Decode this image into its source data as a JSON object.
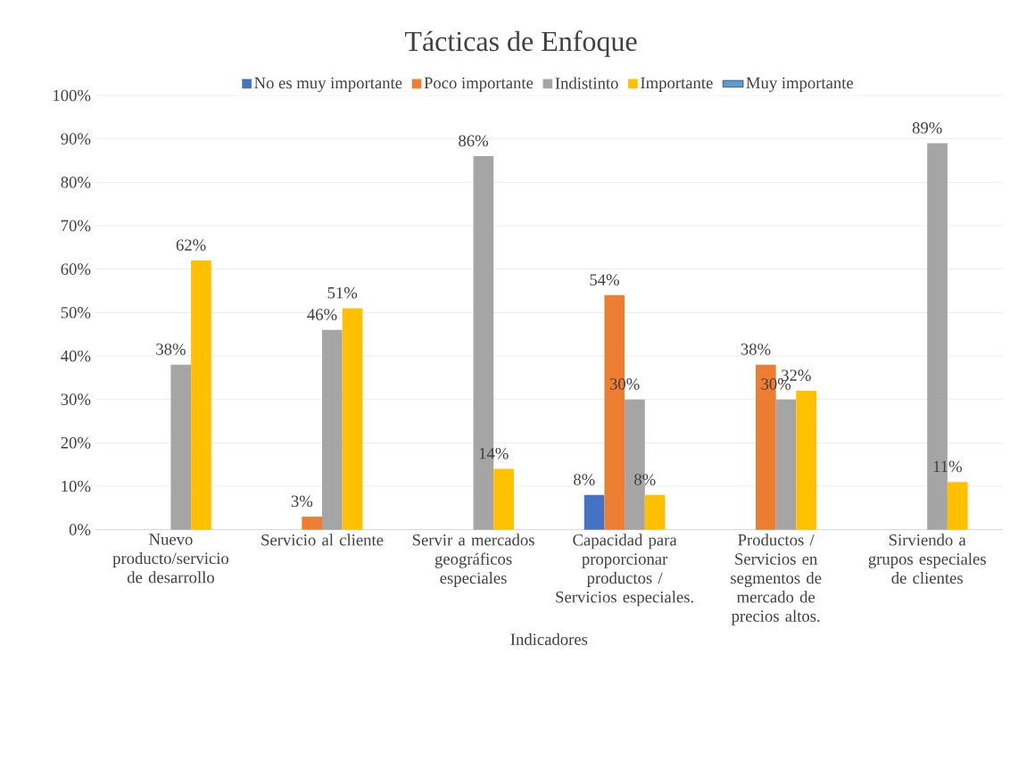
{
  "chart_data": {
    "type": "bar",
    "title": "Tácticas de Enfoque",
    "xlabel": "Indicadores",
    "categories": [
      "Nuevo producto/servicio de desarrollo",
      "Servicio al cliente",
      "Servir a mercados geográficos especiales",
      "Capacidad para proporcionar productos / Servicios especiales.",
      "Productos / Servicios en segmentos de mercado de precios altos.",
      "Sirviendo a grupos especiales de clientes"
    ],
    "series": [
      {
        "name": "No es muy importante",
        "color": "#4472c4",
        "values": [
          null,
          null,
          null,
          8,
          null,
          null
        ],
        "value_labels": [
          null,
          null,
          null,
          "8%",
          null,
          null
        ]
      },
      {
        "name": "Poco importante",
        "color": "#ed7d31",
        "values": [
          null,
          3,
          null,
          54,
          38,
          null
        ],
        "value_labels": [
          null,
          "3%",
          null,
          "54%",
          "38%",
          null
        ]
      },
      {
        "name": "Indistinto",
        "color": "#a5a5a5",
        "values": [
          38,
          46,
          86,
          30,
          30,
          89
        ],
        "value_labels": [
          "38%",
          "46%",
          "86%",
          "30%",
          "30%",
          "89%"
        ]
      },
      {
        "name": "Importante",
        "color": "#ffc000",
        "values": [
          62,
          51,
          14,
          8,
          32,
          11
        ],
        "value_labels": [
          "62%",
          "51%",
          "14%",
          "8%",
          "32%",
          "11%"
        ]
      },
      {
        "name": "Muy importante",
        "color": "#5b9bd5",
        "values": [
          null,
          null,
          null,
          null,
          null,
          null
        ]
      }
    ],
    "ylim": [
      0,
      100
    ],
    "yticks": [
      {
        "value": 0,
        "label": "0%"
      },
      {
        "value": 10,
        "label": "10%"
      },
      {
        "value": 20,
        "label": "20%"
      },
      {
        "value": 30,
        "label": "30%"
      },
      {
        "value": 40,
        "label": "40%"
      },
      {
        "value": 50,
        "label": "50%"
      },
      {
        "value": 60,
        "label": "60%"
      },
      {
        "value": 70,
        "label": "70%"
      },
      {
        "value": 80,
        "label": "80%"
      },
      {
        "value": 90,
        "label": "90%"
      },
      {
        "value": 100,
        "label": "100%"
      }
    ],
    "grid": "y",
    "legend": "top"
  }
}
